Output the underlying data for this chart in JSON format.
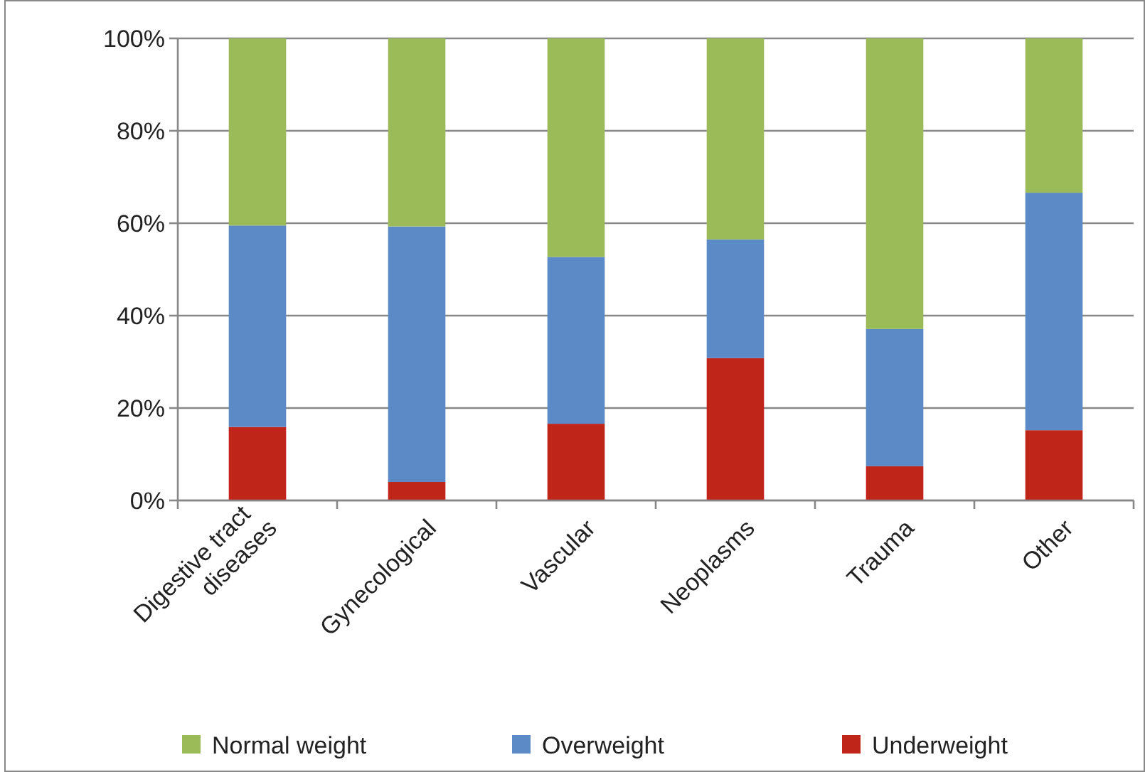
{
  "chart_data": {
    "type": "bar",
    "stacked": true,
    "categories": [
      "Digestive tract diseases",
      "Gynecological",
      "Vascular",
      "Neoplasms",
      "Trauma",
      "Other"
    ],
    "series": [
      {
        "name": "Underweight",
        "color": "#c0251a",
        "values": [
          15.9,
          4.0,
          16.6,
          30.8,
          7.4,
          15.2
        ]
      },
      {
        "name": "Overweight",
        "color": "#5b8ac6",
        "values": [
          43.6,
          55.3,
          36.1,
          25.7,
          29.7,
          51.4
        ]
      },
      {
        "name": "Normal weight",
        "color": "#9bbb59",
        "values": [
          40.5,
          40.7,
          47.3,
          43.5,
          62.9,
          33.4
        ]
      }
    ],
    "ylim": [
      0,
      100
    ],
    "yticks": [
      {
        "value": 0,
        "label": "0%"
      },
      {
        "value": 20,
        "label": "20%"
      },
      {
        "value": 40,
        "label": "40%"
      },
      {
        "value": 60,
        "label": "60%"
      },
      {
        "value": 80,
        "label": "80%"
      },
      {
        "value": 100,
        "label": "100%"
      }
    ],
    "grid": "y",
    "legend": "bottom"
  }
}
